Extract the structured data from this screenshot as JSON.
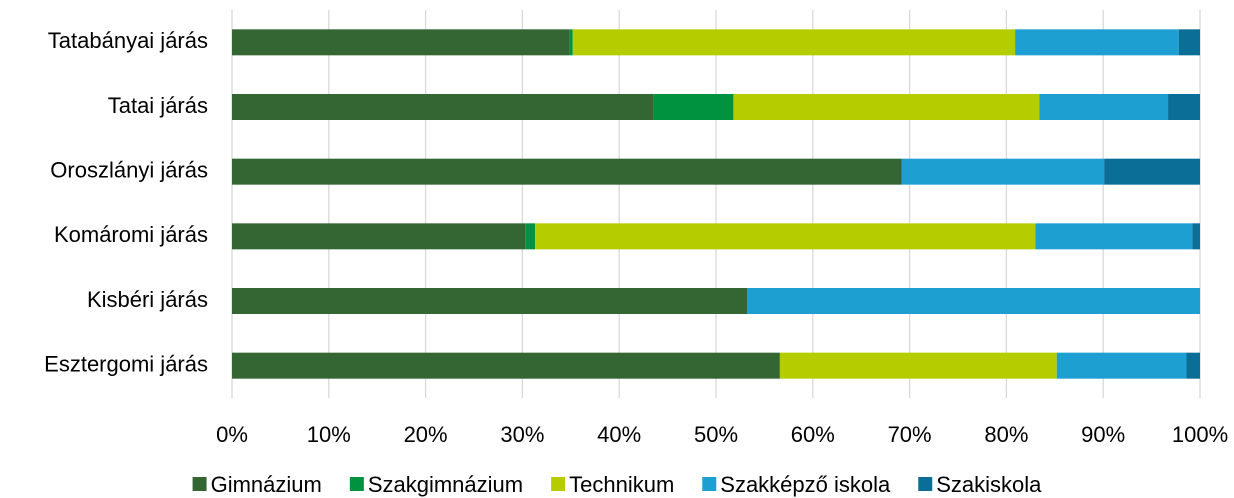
{
  "chart_data": {
    "type": "stacked_bar_horizontal",
    "categories": [
      "Tatabányai járás",
      "Tatai járás",
      "Oroszlányi járás",
      "Komáromi járás",
      "Kisbéri járás",
      "Esztergomi járás"
    ],
    "series": [
      {
        "name": "Gimnázium",
        "color": "#336633",
        "values": [
          34.9,
          43.5,
          69.2,
          30.3,
          53.2,
          56.6
        ]
      },
      {
        "name": "Szakgimnázium",
        "color": "#00923f",
        "values": [
          0.3,
          8.3,
          0,
          1.0,
          0,
          0
        ]
      },
      {
        "name": "Technikum",
        "color": "#b5cc00",
        "values": [
          45.7,
          31.6,
          0,
          51.7,
          0,
          28.6
        ]
      },
      {
        "name": "Szakképző iskola",
        "color": "#1e9fd2",
        "values": [
          16.9,
          13.3,
          20.9,
          16.2,
          46.8,
          13.4
        ]
      },
      {
        "name": "Szakiskola",
        "color": "#0a6e96",
        "values": [
          2.2,
          3.3,
          9.9,
          0.8,
          0,
          1.4
        ]
      }
    ],
    "xlim": [
      0,
      100
    ],
    "xticks": [
      {
        "value": 0,
        "label": "0%"
      },
      {
        "value": 10,
        "label": "10%"
      },
      {
        "value": 20,
        "label": "20%"
      },
      {
        "value": 30,
        "label": "30%"
      },
      {
        "value": 40,
        "label": "40%"
      },
      {
        "value": 50,
        "label": "50%"
      },
      {
        "value": 60,
        "label": "60%"
      },
      {
        "value": 70,
        "label": "70%"
      },
      {
        "value": 80,
        "label": "80%"
      },
      {
        "value": 90,
        "label": "90%"
      },
      {
        "value": 100,
        "label": "100%"
      }
    ],
    "grid": true,
    "legend": "bottom"
  }
}
